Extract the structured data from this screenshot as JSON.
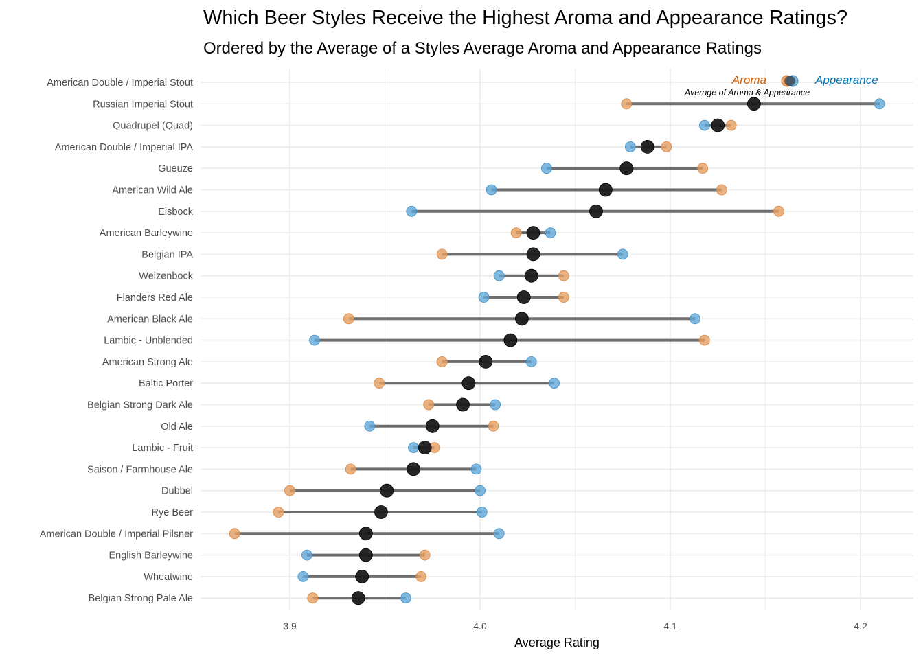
{
  "chart_data": {
    "type": "dumbbell",
    "title": "Which Beer Styles Receive the Highest Aroma and Appearance Ratings?",
    "subtitle": "Ordered by the Average of a Styles Average Aroma and Appearance Ratings",
    "xlabel": "Average Rating",
    "ylabel": "",
    "xlim": [
      3.855,
      4.222
    ],
    "x_ticks": [
      3.9,
      4.0,
      4.1,
      4.2
    ],
    "x_tick_labels": [
      "3.9",
      "4.0",
      "4.1",
      "4.2"
    ],
    "grid": true,
    "legend": {
      "placement": "top-right",
      "aroma_label": "Aroma",
      "appearance_label": "Appearance",
      "average_label": "Average of Aroma & Appearance"
    },
    "colors": {
      "aroma": "#e69f62",
      "aroma_text": "#d55e00",
      "appearance": "#5fa8d8",
      "appearance_text": "#0072b2",
      "average": "#1a1a1a",
      "segment": "#6e6e6e",
      "grid": "#ebebeb"
    },
    "categories": [
      "American Double / Imperial Stout",
      "Russian Imperial Stout",
      "Quadrupel (Quad)",
      "American Double / Imperial IPA",
      "Gueuze",
      "American Wild Ale",
      "Eisbock",
      "American Barleywine",
      "Belgian IPA",
      "Weizenbock",
      "Flanders Red Ale",
      "American Black Ale",
      "Lambic - Unblended",
      "American Strong Ale",
      "Baltic Porter",
      "Belgian Strong Dark Ale",
      "Old Ale",
      "Lambic - Fruit",
      "Saison / Farmhouse Ale",
      "Dubbel",
      "Rye Beer",
      "American Double / Imperial Pilsner",
      "English Barleywine",
      "Wheatwine",
      "Belgian Strong Pale Ale"
    ],
    "series": [
      {
        "name": "Aroma",
        "values": [
          4.156,
          4.077,
          4.132,
          4.098,
          4.117,
          4.127,
          4.157,
          4.019,
          3.98,
          4.044,
          4.044,
          3.931,
          4.118,
          3.98,
          3.947,
          3.973,
          4.007,
          3.976,
          3.932,
          3.9,
          3.894,
          3.871,
          3.971,
          3.969,
          3.912
        ]
      },
      {
        "name": "Appearance",
        "values": [
          4.162,
          4.21,
          4.118,
          4.079,
          4.035,
          4.006,
          3.964,
          4.037,
          4.075,
          4.01,
          4.002,
          4.113,
          3.913,
          4.027,
          4.039,
          4.008,
          3.942,
          3.965,
          3.998,
          4.0,
          4.001,
          4.01,
          3.909,
          3.907,
          3.961
        ]
      },
      {
        "name": "Average",
        "values": [
          4.159,
          4.144,
          4.125,
          4.088,
          4.077,
          4.066,
          4.061,
          4.028,
          4.028,
          4.027,
          4.023,
          4.022,
          4.016,
          4.003,
          3.994,
          3.991,
          3.975,
          3.971,
          3.965,
          3.951,
          3.948,
          3.94,
          3.94,
          3.938,
          3.936
        ]
      }
    ],
    "legend_row_index": 0
  }
}
